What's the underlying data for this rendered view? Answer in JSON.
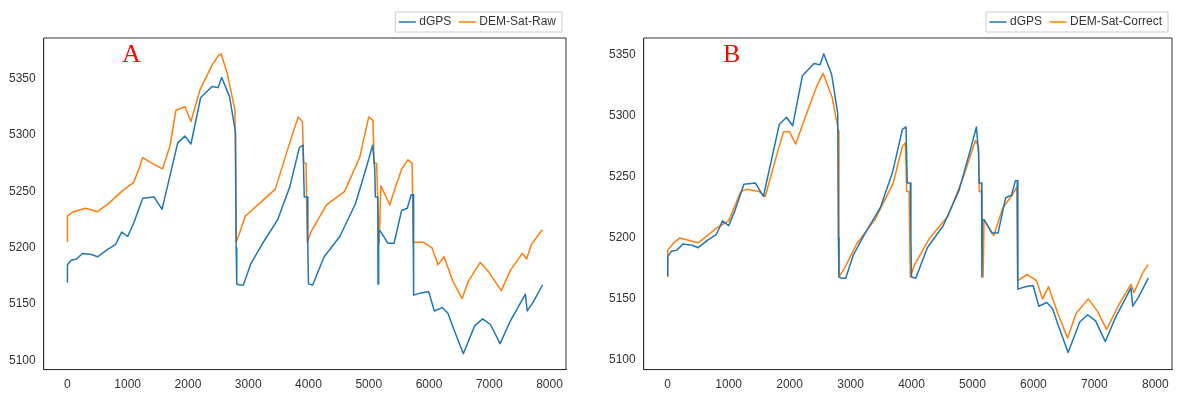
{
  "chart_data": [
    {
      "type": "line",
      "title": "A",
      "legend": "top right",
      "grid": false,
      "marker": "none",
      "line_style": "solid",
      "xlim": [
        -394,
        8274
      ],
      "xticks": [
        0,
        1000,
        2000,
        3000,
        4000,
        5000,
        6000,
        7000,
        8000
      ],
      "ylim": [
        5092,
        5386
      ],
      "yticks": [
        5100,
        5150,
        5200,
        5250,
        5300,
        5350
      ],
      "series": [
        {
          "name": "dGPS",
          "color": "#1f77b4",
          "x": [
            0,
            0,
            60,
            150,
            250,
            400,
            500,
            650,
            800,
            900,
            1000,
            1100,
            1250,
            1440,
            1570,
            1830,
            1950,
            2050,
            2210,
            2400,
            2500,
            2560,
            2690,
            2790,
            2800,
            2810,
            2850,
            2920,
            3045,
            3240,
            3490,
            3690,
            3850,
            3910,
            3930,
            3980,
            3990,
            4000,
            4070,
            4260,
            4520,
            4780,
            4970,
            5065,
            5100,
            5110,
            5150,
            5155,
            5165,
            5190,
            5320,
            5420,
            5545,
            5640,
            5705,
            5735,
            5745,
            5865,
            5995,
            6090,
            6220,
            6315,
            6410,
            6570,
            6760,
            6890,
            7020,
            7180,
            7340,
            7600,
            7630,
            7720,
            7885
          ],
          "values": [
            5169,
            5185,
            5189,
            5190,
            5195,
            5194,
            5192,
            5198,
            5203,
            5214,
            5210,
            5222,
            5244,
            5245,
            5234,
            5293,
            5299,
            5292,
            5333,
            5343,
            5342,
            5351,
            5334,
            5302,
            5200,
            5168,
            5167,
            5167,
            5186,
            5204,
            5225,
            5254,
            5289,
            5291,
            5245,
            5245,
            5200,
            5168,
            5167,
            5192,
            5210,
            5239,
            5273,
            5291,
            5270,
            5245,
            5245,
            5168,
            5215,
            5215,
            5204,
            5204,
            5233,
            5235,
            5247,
            5247,
            5158,
            5160,
            5161,
            5144,
            5147,
            5142,
            5128,
            5106,
            5131,
            5137,
            5132,
            5115,
            5134,
            5159,
            5144,
            5151,
            5167
          ]
        },
        {
          "name": "DEM-Sat-Raw",
          "color": "#ff7f0e",
          "x": [
            0,
            0,
            100,
            300,
            500,
            700,
            900,
            1100,
            1200,
            1250,
            1400,
            1580,
            1700,
            1800,
            1950,
            2050,
            2200,
            2400,
            2500,
            2550,
            2650,
            2780,
            2800,
            2850,
            2950,
            3200,
            3450,
            3700,
            3830,
            3900,
            3920,
            3960,
            3980,
            4050,
            4300,
            4600,
            4850,
            5000,
            5070,
            5090,
            5130,
            5175,
            5200,
            5350,
            5450,
            5550,
            5650,
            5720,
            5740,
            5900,
            6050,
            6150,
            6250,
            6400,
            6550,
            6650,
            6850,
            7000,
            7200,
            7350,
            7550,
            7620,
            7700,
            7880
          ],
          "values": [
            5205,
            5228,
            5232,
            5235,
            5232,
            5240,
            5250,
            5258,
            5272,
            5280,
            5275,
            5270,
            5290,
            5322,
            5325,
            5312,
            5340,
            5362,
            5370,
            5372,
            5355,
            5322,
            5205,
            5212,
            5228,
            5240,
            5252,
            5295,
            5316,
            5312,
            5275,
            5275,
            5205,
            5215,
            5238,
            5250,
            5280,
            5316,
            5313,
            5275,
            5275,
            5205,
            5255,
            5238,
            5255,
            5270,
            5278,
            5275,
            5205,
            5205,
            5200,
            5185,
            5192,
            5170,
            5155,
            5170,
            5187,
            5178,
            5162,
            5180,
            5195,
            5190,
            5203,
            5216
          ]
        }
      ]
    },
    {
      "type": "line",
      "title": "B",
      "legend": "top right",
      "grid": false,
      "marker": "none",
      "line_style": "solid",
      "xlim": [
        -394,
        8274
      ],
      "xticks": [
        0,
        1000,
        2000,
        3000,
        4000,
        5000,
        6000,
        7000,
        8000
      ],
      "ylim": [
        5092,
        5364
      ],
      "yticks": [
        5100,
        5150,
        5200,
        5250,
        5300,
        5350
      ],
      "series": [
        {
          "name": "dGPS",
          "color": "#1f77b4",
          "x": [
            0,
            0,
            60,
            150,
            250,
            400,
            500,
            650,
            800,
            900,
            1000,
            1100,
            1250,
            1440,
            1570,
            1830,
            1950,
            2050,
            2210,
            2400,
            2500,
            2560,
            2690,
            2790,
            2800,
            2810,
            2850,
            2920,
            3045,
            3240,
            3490,
            3690,
            3850,
            3910,
            3930,
            3980,
            3990,
            4000,
            4070,
            4260,
            4520,
            4780,
            4970,
            5065,
            5100,
            5110,
            5150,
            5155,
            5165,
            5190,
            5320,
            5420,
            5545,
            5640,
            5705,
            5735,
            5745,
            5865,
            5995,
            6090,
            6220,
            6315,
            6410,
            6570,
            6760,
            6890,
            7020,
            7180,
            7340,
            7600,
            7630,
            7720,
            7885
          ],
          "values": [
            5169,
            5185,
            5189,
            5190,
            5195,
            5194,
            5192,
            5198,
            5203,
            5214,
            5210,
            5222,
            5244,
            5245,
            5234,
            5293,
            5299,
            5292,
            5333,
            5343,
            5342,
            5351,
            5334,
            5302,
            5200,
            5168,
            5167,
            5167,
            5186,
            5204,
            5225,
            5254,
            5289,
            5291,
            5245,
            5245,
            5200,
            5168,
            5167,
            5192,
            5210,
            5239,
            5273,
            5291,
            5270,
            5245,
            5245,
            5168,
            5215,
            5215,
            5204,
            5204,
            5233,
            5235,
            5247,
            5247,
            5158,
            5160,
            5161,
            5144,
            5147,
            5142,
            5128,
            5106,
            5131,
            5137,
            5132,
            5115,
            5134,
            5159,
            5144,
            5151,
            5167
          ]
        },
        {
          "name": "DEM-Sat-Correct",
          "color": "#ff7f0e",
          "x": [
            0,
            0,
            100,
            200,
            500,
            800,
            1000,
            1200,
            1300,
            1500,
            1600,
            1800,
            1900,
            2000,
            2100,
            2300,
            2450,
            2550,
            2700,
            2800,
            2810,
            2900,
            3100,
            3400,
            3700,
            3850,
            3900,
            3920,
            3960,
            3980,
            4050,
            4300,
            4600,
            4850,
            5050,
            5100,
            5110,
            5150,
            5175,
            5190,
            5350,
            5500,
            5650,
            5730,
            5740,
            5900,
            6050,
            6150,
            6250,
            6400,
            6560,
            6700,
            6900,
            7050,
            7200,
            7400,
            7600,
            7650,
            7800,
            7880
          ],
          "values": [
            5168,
            5190,
            5196,
            5200,
            5196,
            5208,
            5214,
            5238,
            5240,
            5238,
            5234,
            5270,
            5287,
            5287,
            5277,
            5305,
            5325,
            5335,
            5315,
            5288,
            5168,
            5175,
            5195,
            5215,
            5245,
            5275,
            5278,
            5238,
            5238,
            5168,
            5178,
            5200,
            5218,
            5250,
            5280,
            5275,
            5238,
            5238,
            5168,
            5215,
            5202,
            5225,
            5235,
            5242,
            5165,
            5170,
            5165,
            5150,
            5160,
            5138,
            5118,
            5138,
            5150,
            5140,
            5125,
            5145,
            5162,
            5155,
            5172,
            5178
          ]
        }
      ]
    }
  ]
}
